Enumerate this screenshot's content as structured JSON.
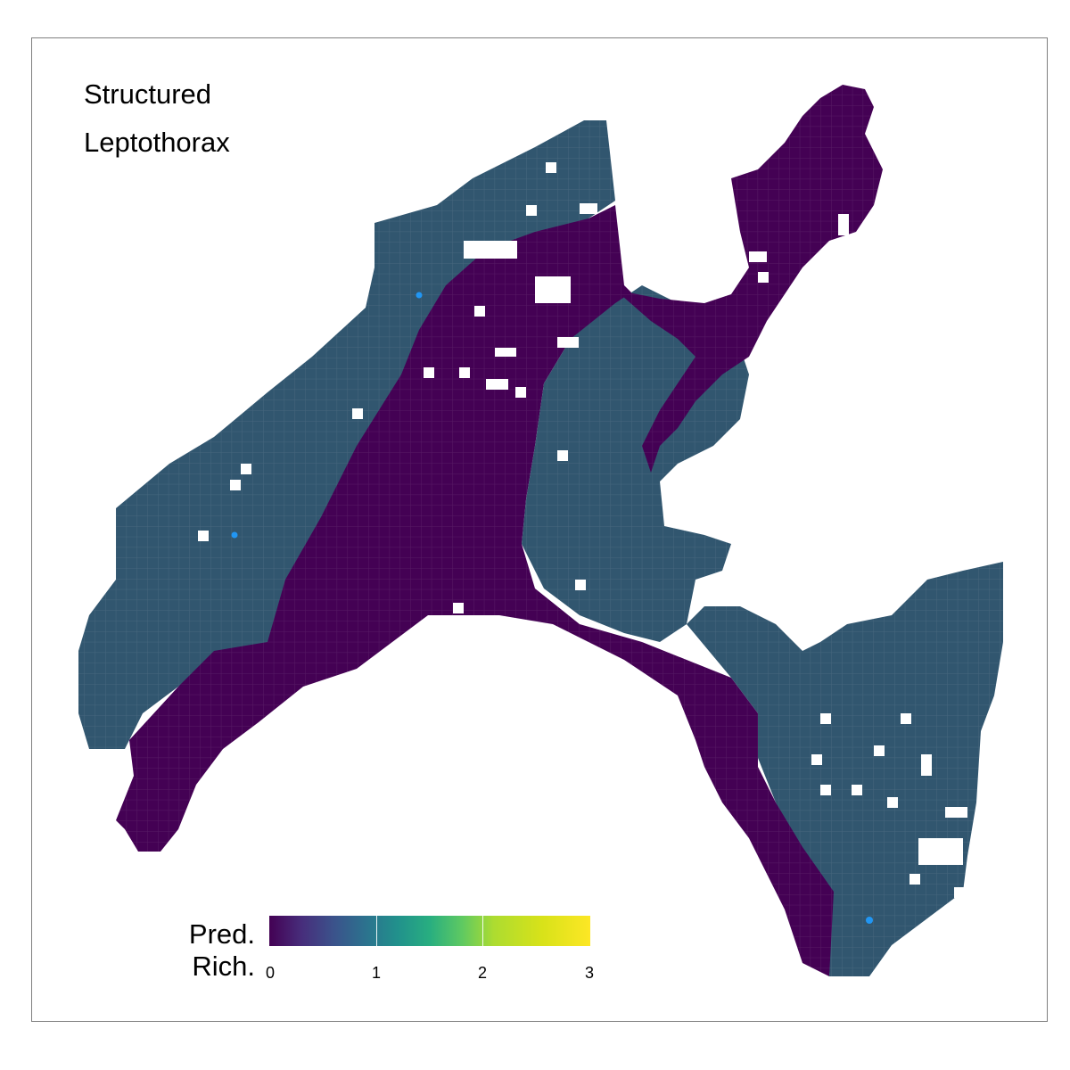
{
  "title_lines": [
    "Structured",
    "Leptothorax"
  ],
  "legend": {
    "title_lines": [
      "Pred.",
      "Rich."
    ],
    "ticks": [
      "0",
      "1",
      "2",
      "3"
    ],
    "range": [
      0,
      3
    ]
  },
  "colors": {
    "low_class": "#440154",
    "mid_class": "#31566f",
    "occurrence_point": "#2196f3",
    "panel_border": "#7f7f7f"
  },
  "map_classes": [
    {
      "id": "low",
      "predicted_richness": 0,
      "color": "#440154"
    },
    {
      "id": "one",
      "predicted_richness": 1,
      "color": "#31566f"
    }
  ],
  "occurrence_points_count": 3
}
